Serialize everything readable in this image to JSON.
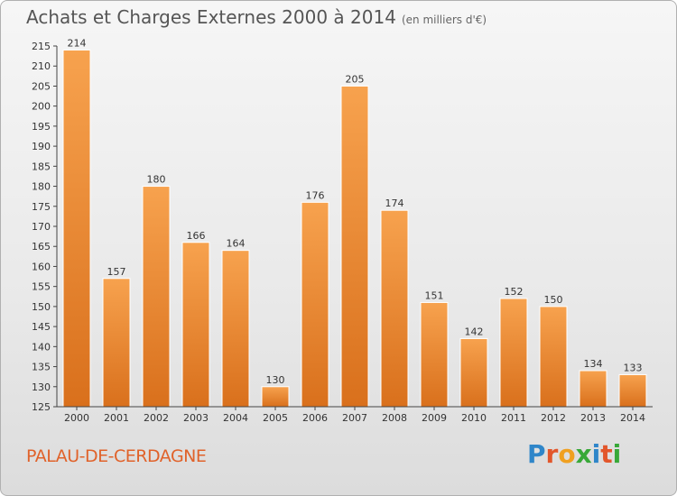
{
  "header": {
    "title": "Achats et Charges Externes 2000 à 2014",
    "subtitle": "(en milliers d'€)"
  },
  "footer": {
    "place": "PALAU-DE-CERDAGNE",
    "logo_letters": [
      "P",
      "r",
      "o",
      "x",
      "i",
      "t",
      "i"
    ],
    "logo_colors": [
      "#2f86c9",
      "#e2562b",
      "#f0a020",
      "#38a838",
      "#2f86c9",
      "#e2562b",
      "#38a838"
    ]
  },
  "colors": {
    "bar_top": "#f7a24e",
    "bar_bottom": "#d9701c",
    "axis": "#444444",
    "grid": "#d8d8d8",
    "text": "#333333"
  },
  "chart_data": {
    "type": "bar",
    "title": "Achats et Charges Externes 2000 à 2014",
    "subtitle": "(en milliers d'€)",
    "categories": [
      "2000",
      "2001",
      "2002",
      "2003",
      "2004",
      "2005",
      "2006",
      "2007",
      "2008",
      "2009",
      "2010",
      "2011",
      "2012",
      "2013",
      "2014"
    ],
    "values": [
      214,
      157,
      180,
      166,
      164,
      130,
      176,
      205,
      174,
      151,
      142,
      152,
      150,
      134,
      133
    ],
    "ylim": [
      125,
      215
    ],
    "ytick_step": 5,
    "grid": false,
    "data_labels": true
  }
}
